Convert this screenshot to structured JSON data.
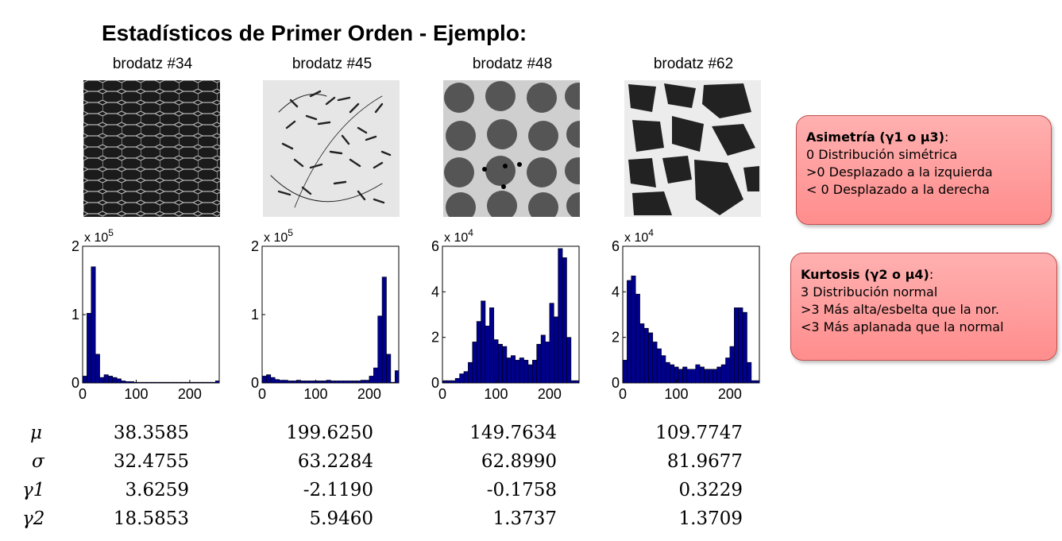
{
  "title": "Estadísticos de Primer Orden - Ejemplo:",
  "textures": [
    {
      "title": "brodatz #34",
      "pattern": "honeycomb-mesh"
    },
    {
      "title": "brodatz #45",
      "pattern": "grass-strokes"
    },
    {
      "title": "brodatz #48",
      "pattern": "blob-grid"
    },
    {
      "title": "brodatz #62",
      "pattern": "pebbles"
    }
  ],
  "callouts": [
    {
      "heading": "Asimetría (γ1 o μ3)",
      "suffix": ":",
      "lines": [
        "0 Distribución simétrica",
        ">0 Desplazado a la izquierda",
        "< 0 Desplazado a la derecha"
      ]
    },
    {
      "heading": "Kurtosis (γ2 o μ4)",
      "suffix": ":",
      "lines": [
        "3 Distribución normal",
        ">3 Más alta/esbelta que la nor.",
        "<3 Más aplanada que la normal"
      ]
    }
  ],
  "stats": {
    "labels": [
      "μ",
      "σ",
      "γ1",
      "γ2"
    ],
    "rows": [
      [
        "38.3585",
        "199.6250",
        "149.7634",
        "109.7747"
      ],
      [
        "32.4755",
        "63.2284",
        "62.8990",
        "81.9677"
      ],
      [
        "3.6259",
        "-2.1190",
        "-0.1758",
        "0.3229"
      ],
      [
        "18.5853",
        "5.9460",
        "1.3737",
        "1.3709"
      ]
    ]
  },
  "colors": {
    "bar_fill": "#00008f",
    "bar_edge": "#000000",
    "callout_fill": "#ff9e9e",
    "callout_border": "#c0504d"
  },
  "chart_data": [
    {
      "type": "bar",
      "title": "",
      "xlabel": "",
      "ylabel": "",
      "exponent": "x 10^5",
      "exponent_base": "x 10",
      "exponent_power": "5",
      "xlim": [
        0,
        255
      ],
      "ylim": [
        0,
        2
      ],
      "xticks": [
        "0",
        "100",
        "200"
      ],
      "yticks": [
        "0",
        "1",
        "2"
      ],
      "bin_width": 8,
      "grid": false,
      "values": [
        0.1,
        1.02,
        1.7,
        0.42,
        0.08,
        0.12,
        0.1,
        0.08,
        0.06,
        0.03,
        0.02,
        0.02,
        0.01,
        0.01,
        0.01,
        0.01,
        0.01,
        0.01,
        0.01,
        0.01,
        0.01,
        0.01,
        0.01,
        0.01,
        0.01,
        0.01,
        0.01,
        0.01,
        0.01,
        0.01,
        0.01,
        0.03
      ]
    },
    {
      "type": "bar",
      "title": "",
      "xlabel": "",
      "ylabel": "",
      "exponent": "x 10^5",
      "exponent_base": "x 10",
      "exponent_power": "5",
      "xlim": [
        0,
        255
      ],
      "ylim": [
        0,
        2
      ],
      "xticks": [
        "0",
        "100",
        "200"
      ],
      "yticks": [
        "0",
        "1",
        "2"
      ],
      "bin_width": 8,
      "grid": false,
      "values": [
        0.1,
        0.12,
        0.08,
        0.05,
        0.04,
        0.04,
        0.03,
        0.03,
        0.04,
        0.03,
        0.03,
        0.03,
        0.03,
        0.03,
        0.03,
        0.04,
        0.03,
        0.03,
        0.03,
        0.03,
        0.03,
        0.03,
        0.03,
        0.04,
        0.04,
        0.1,
        0.22,
        0.98,
        1.55,
        0.42,
        0.01,
        0.18
      ]
    },
    {
      "type": "bar",
      "title": "",
      "xlabel": "",
      "ylabel": "",
      "exponent": "x 10^4",
      "exponent_base": "x 10",
      "exponent_power": "4",
      "xlim": [
        0,
        255
      ],
      "ylim": [
        0,
        6
      ],
      "xticks": [
        "0",
        "100",
        "200"
      ],
      "yticks": [
        "0",
        "2",
        "4",
        "6"
      ],
      "bin_width": 8,
      "grid": false,
      "values": [
        0.1,
        0.1,
        0.1,
        0.2,
        0.4,
        0.5,
        0.9,
        1.8,
        2.7,
        3.6,
        2.5,
        3.3,
        1.9,
        1.7,
        1.6,
        1.1,
        1.2,
        1.0,
        1.1,
        1.0,
        0.8,
        1.0,
        1.7,
        2.1,
        1.8,
        3.5,
        2.9,
        5.9,
        5.5,
        2.0,
        0.1,
        0.1
      ]
    },
    {
      "type": "bar",
      "title": "",
      "xlabel": "",
      "ylabel": "",
      "exponent": "x 10^4",
      "exponent_base": "x 10",
      "exponent_power": "4",
      "xlim": [
        0,
        255
      ],
      "ylim": [
        0,
        6
      ],
      "xticks": [
        "0",
        "100",
        "200"
      ],
      "yticks": [
        "0",
        "2",
        "4",
        "6"
      ],
      "bin_width": 8,
      "grid": false,
      "values": [
        1.0,
        4.5,
        4.7,
        3.9,
        2.6,
        2.4,
        2.2,
        1.8,
        1.5,
        1.2,
        0.9,
        0.8,
        0.7,
        0.6,
        0.7,
        0.6,
        0.6,
        0.8,
        0.7,
        0.6,
        0.6,
        0.6,
        0.7,
        0.8,
        1.1,
        1.6,
        3.3,
        3.3,
        3.1,
        0.9,
        0.1,
        0.1
      ]
    }
  ]
}
